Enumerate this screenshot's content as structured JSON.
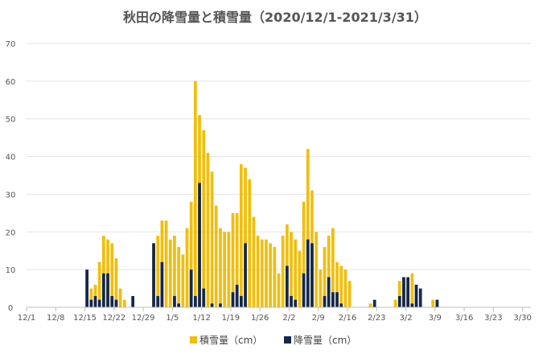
{
  "chart_data": {
    "type": "bar",
    "title": "秋田の降雪量と積雪量（2020/12/1-2021/3/31）",
    "start": "2020-12-01",
    "x_tick_labels": [
      "12/1",
      "12/8",
      "12/15",
      "12/22",
      "12/29",
      "1/5",
      "1/12",
      "1/19",
      "1/26",
      "2/2",
      "2/9",
      "2/16",
      "2/23",
      "3/2",
      "3/9",
      "3/16",
      "3/23",
      "3/30"
    ],
    "ylim": [
      0,
      70
    ],
    "y_ticks": [
      0,
      10,
      20,
      30,
      40,
      50,
      60,
      70
    ],
    "grid": "horizontal",
    "legend": "bottom",
    "series": [
      {
        "name": "積雪量（cm）",
        "color": "#F2BE0C",
        "values": [
          0,
          0,
          0,
          0,
          0,
          0,
          0,
          0,
          0,
          0,
          0,
          0,
          0,
          0,
          10,
          5,
          6,
          12,
          19,
          18,
          17,
          13,
          5,
          2,
          0,
          0,
          0,
          0,
          0,
          0,
          17,
          19,
          23,
          23,
          18,
          19,
          16,
          14,
          21,
          28,
          60,
          51,
          47,
          41,
          36,
          27,
          21,
          20,
          20,
          25,
          25,
          38,
          37,
          34,
          24,
          19,
          18,
          18,
          17,
          16,
          9,
          19,
          22,
          20,
          18,
          15,
          28,
          42,
          31,
          20,
          10,
          16,
          19,
          21,
          12,
          11,
          10,
          7,
          0,
          0,
          0,
          0,
          1,
          1,
          0,
          0,
          0,
          0,
          2,
          7,
          8,
          7,
          9,
          5,
          0,
          0,
          0,
          2,
          2,
          0,
          0,
          0,
          0,
          0,
          0,
          0,
          0,
          0,
          0,
          0,
          0,
          0,
          0,
          0,
          0,
          0,
          0,
          0,
          0,
          0,
          0
        ]
      },
      {
        "name": "降雪量（cm）",
        "color": "#13284F",
        "values": [
          0,
          0,
          0,
          0,
          0,
          0,
          0,
          0,
          0,
          0,
          0,
          0,
          0,
          0,
          10,
          2,
          3,
          2,
          9,
          9,
          3,
          2,
          0,
          0,
          0,
          3,
          0,
          0,
          0,
          0,
          17,
          3,
          12,
          0,
          0,
          3,
          1,
          0,
          0,
          10,
          3,
          33,
          5,
          0,
          1,
          0,
          1,
          0,
          0,
          4,
          6,
          3,
          17,
          0,
          0,
          0,
          0,
          0,
          0,
          0,
          0,
          0,
          11,
          3,
          2,
          0,
          9,
          18,
          17,
          0,
          0,
          3,
          8,
          4,
          4,
          1,
          0,
          0,
          0,
          0,
          0,
          0,
          0,
          2,
          0,
          0,
          0,
          0,
          0,
          3,
          8,
          8,
          1,
          6,
          5,
          0,
          0,
          0,
          2,
          0,
          0,
          0,
          0,
          0,
          0,
          0,
          0,
          0,
          0,
          0,
          0,
          0,
          0,
          0,
          0,
          0,
          0,
          0,
          0,
          0,
          0
        ]
      }
    ]
  }
}
